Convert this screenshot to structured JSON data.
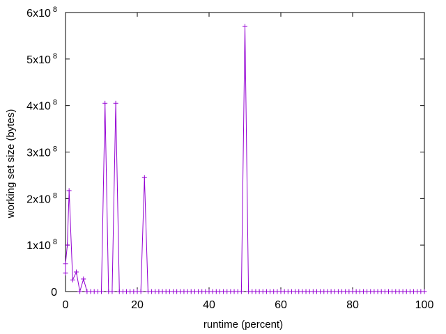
{
  "chart_data": {
    "type": "line",
    "xlabel": "runtime (percent)",
    "ylabel": "working set size (bytes)",
    "xlim": [
      0,
      100
    ],
    "ylim": [
      0,
      600000000
    ],
    "x_ticks": [
      0,
      20,
      40,
      60,
      80,
      100
    ],
    "y_ticks": [
      {
        "value": 0,
        "base": "0",
        "exp": ""
      },
      {
        "value": 100000000,
        "base": "1x10",
        "exp": "8"
      },
      {
        "value": 200000000,
        "base": "2x10",
        "exp": "8"
      },
      {
        "value": 300000000,
        "base": "3x10",
        "exp": "8"
      },
      {
        "value": 400000000,
        "base": "4x10",
        "exp": "8"
      },
      {
        "value": 500000000,
        "base": "5x10",
        "exp": "8"
      },
      {
        "value": 600000000,
        "base": "6x10",
        "exp": "8"
      }
    ],
    "grid": false,
    "marker": "+",
    "series": [
      {
        "color": "#9400d3",
        "points": [
          [
            0,
            40000000
          ],
          [
            0,
            60000000
          ],
          [
            0.5,
            100000000
          ],
          [
            1,
            217000000
          ],
          [
            2,
            25000000
          ],
          [
            3,
            42000000
          ],
          [
            4,
            0
          ],
          [
            5,
            27000000
          ],
          [
            6,
            0
          ],
          [
            7,
            0
          ],
          [
            8,
            0
          ],
          [
            9,
            0
          ],
          [
            10,
            0
          ],
          [
            11,
            405000000
          ],
          [
            12,
            0
          ],
          [
            13,
            0
          ],
          [
            14,
            405000000
          ],
          [
            15,
            0
          ],
          [
            16,
            0
          ],
          [
            17,
            0
          ],
          [
            18,
            0
          ],
          [
            19,
            0
          ],
          [
            20,
            0
          ],
          [
            21,
            0
          ],
          [
            22,
            245000000
          ],
          [
            23,
            0
          ],
          [
            24,
            0
          ],
          [
            25,
            0
          ],
          [
            26,
            0
          ],
          [
            27,
            0
          ],
          [
            28,
            0
          ],
          [
            29,
            0
          ],
          [
            30,
            0
          ],
          [
            31,
            0
          ],
          [
            32,
            0
          ],
          [
            33,
            0
          ],
          [
            34,
            0
          ],
          [
            35,
            0
          ],
          [
            36,
            0
          ],
          [
            37,
            0
          ],
          [
            38,
            0
          ],
          [
            39,
            0
          ],
          [
            40,
            0
          ],
          [
            41,
            0
          ],
          [
            42,
            0
          ],
          [
            43,
            0
          ],
          [
            44,
            0
          ],
          [
            45,
            0
          ],
          [
            46,
            0
          ],
          [
            47,
            0
          ],
          [
            48,
            0
          ],
          [
            49,
            0
          ],
          [
            50,
            570000000
          ],
          [
            51,
            0
          ],
          [
            52,
            0
          ],
          [
            53,
            0
          ],
          [
            54,
            0
          ],
          [
            55,
            0
          ],
          [
            56,
            0
          ],
          [
            57,
            0
          ],
          [
            58,
            0
          ],
          [
            59,
            0
          ],
          [
            60,
            0
          ],
          [
            61,
            0
          ],
          [
            62,
            0
          ],
          [
            63,
            0
          ],
          [
            64,
            0
          ],
          [
            65,
            0
          ],
          [
            66,
            0
          ],
          [
            67,
            0
          ],
          [
            68,
            0
          ],
          [
            69,
            0
          ],
          [
            70,
            0
          ],
          [
            71,
            0
          ],
          [
            72,
            0
          ],
          [
            73,
            0
          ],
          [
            74,
            0
          ],
          [
            75,
            0
          ],
          [
            76,
            0
          ],
          [
            77,
            0
          ],
          [
            78,
            0
          ],
          [
            79,
            0
          ],
          [
            80,
            0
          ],
          [
            81,
            0
          ],
          [
            82,
            0
          ],
          [
            83,
            0
          ],
          [
            84,
            0
          ],
          [
            85,
            0
          ],
          [
            86,
            0
          ],
          [
            87,
            0
          ],
          [
            88,
            0
          ],
          [
            89,
            0
          ],
          [
            90,
            0
          ],
          [
            91,
            0
          ],
          [
            92,
            0
          ],
          [
            93,
            0
          ],
          [
            94,
            0
          ],
          [
            95,
            0
          ],
          [
            96,
            0
          ],
          [
            97,
            0
          ],
          [
            98,
            0
          ],
          [
            99,
            0
          ],
          [
            100,
            0
          ]
        ]
      }
    ]
  }
}
